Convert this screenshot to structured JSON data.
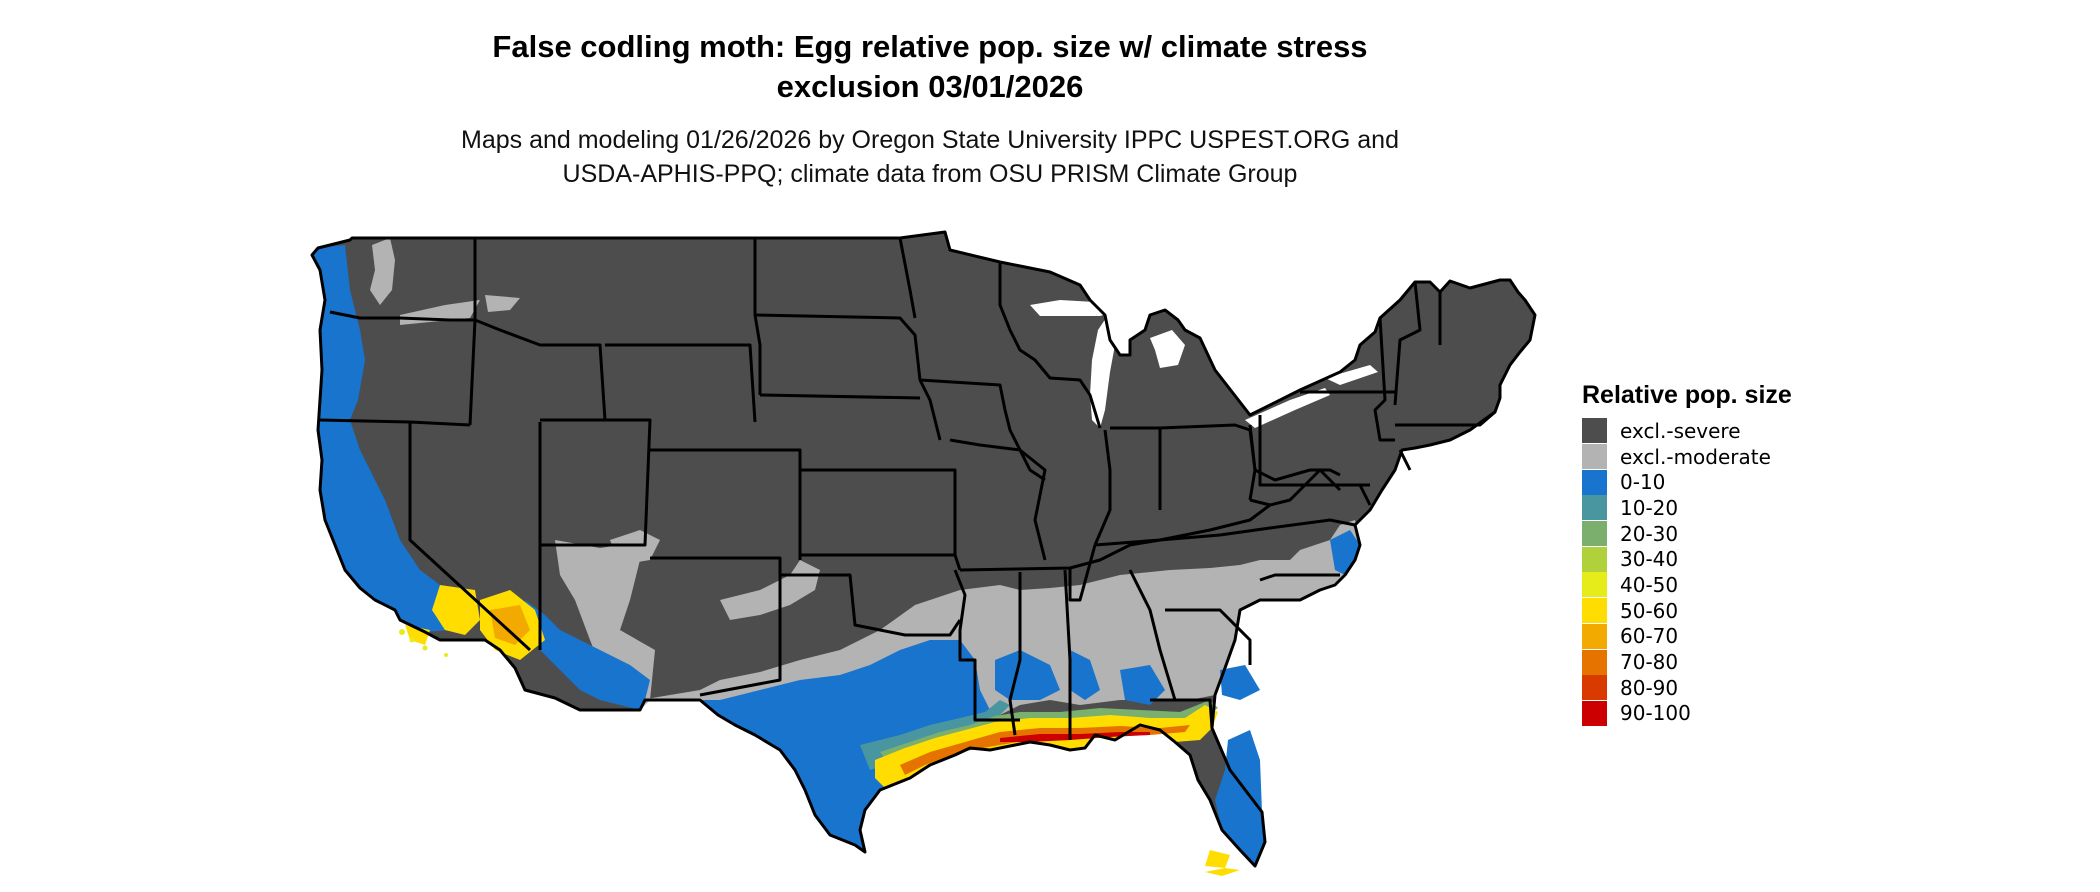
{
  "header": {
    "title_line1": "False codling moth: Egg relative pop. size w/ climate stress",
    "title_line2": "exclusion 03/01/2026",
    "subtitle_line1": "Maps and modeling 01/26/2026 by Oregon State University IPPC USPEST.ORG and",
    "subtitle_line2": "USDA-APHIS-PPQ; climate data from OSU PRISM Climate Group"
  },
  "legend": {
    "title": "Relative pop. size",
    "items": [
      {
        "label": "excl.-severe",
        "color": "#4d4d4d"
      },
      {
        "label": "excl.-moderate",
        "color": "#b3b3b3"
      },
      {
        "label": "0-10",
        "color": "#1874cd"
      },
      {
        "label": "10-20",
        "color": "#4a96a0"
      },
      {
        "label": "20-30",
        "color": "#7aaf6e"
      },
      {
        "label": "30-40",
        "color": "#b1d13c"
      },
      {
        "label": "40-50",
        "color": "#e6ec1a"
      },
      {
        "label": "50-60",
        "color": "#ffdd00"
      },
      {
        "label": "60-70",
        "color": "#f2aa00"
      },
      {
        "label": "70-80",
        "color": "#e67300"
      },
      {
        "label": "80-90",
        "color": "#d93a00"
      },
      {
        "label": "90-100",
        "color": "#cc0000"
      }
    ]
  }
}
